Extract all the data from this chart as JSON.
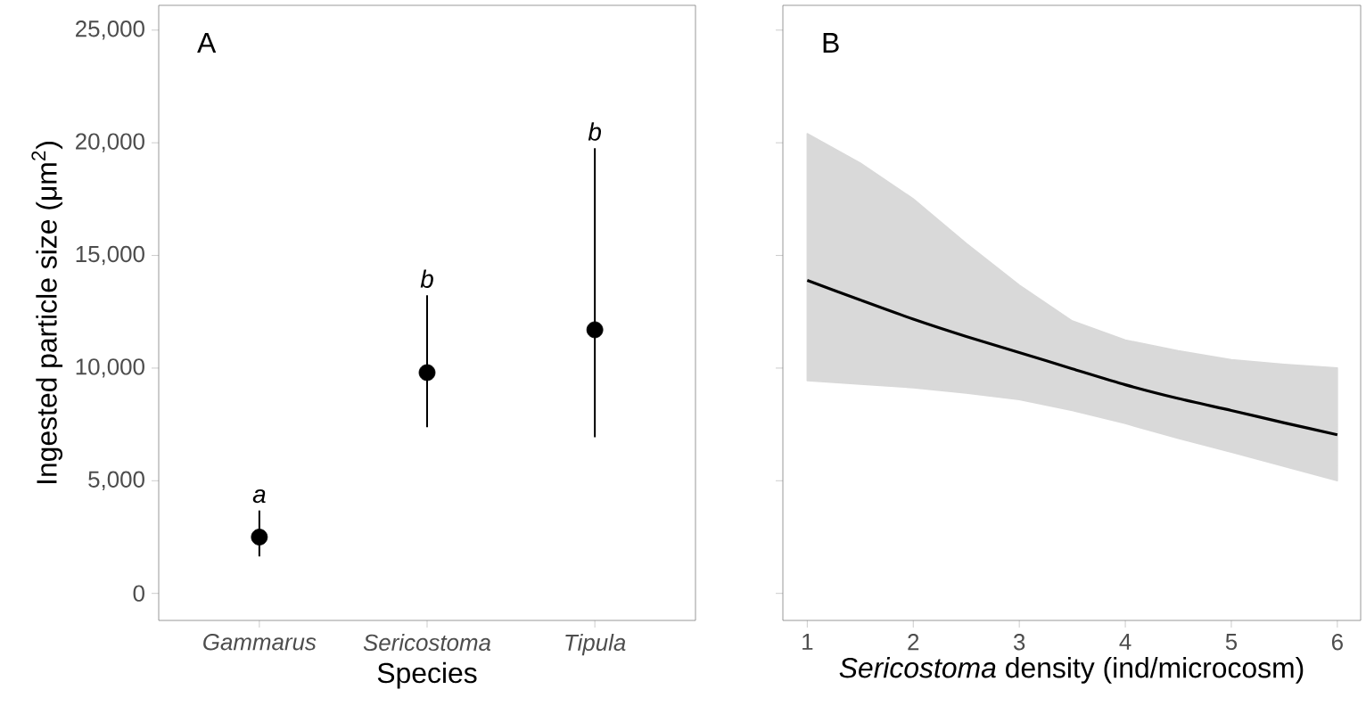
{
  "chart_data": [
    {
      "type": "scatter",
      "title": "A",
      "xlabel": "Species",
      "ylabel": "Ingested particle size (μm$^{2}$)",
      "categories": [
        "Gammarus",
        "Sericostoma",
        "Tipula"
      ],
      "values": [
        2500,
        9800,
        11700
      ],
      "errors": [
        [
          1640,
          3680
        ],
        [
          7380,
          13230
        ],
        [
          6930,
          19760
        ]
      ],
      "color": "#000000",
      "marker": "circle",
      "annotations": [
        "a",
        "b",
        "b"
      ],
      "ylim": [
        -1200,
        26100
      ],
      "yticks": [
        {
          "value": 0,
          "label": "0"
        },
        {
          "value": 5000,
          "label": "5,000"
        },
        {
          "value": 10000,
          "label": "10,000"
        },
        {
          "value": 15000,
          "label": "15,000"
        },
        {
          "value": 20000,
          "label": "20,000"
        },
        {
          "value": 25000,
          "label": "25,000"
        }
      ],
      "grid": false
    },
    {
      "type": "line",
      "title": "B",
      "xlabel": "*Sericostoma* density (ind/microcosm)",
      "series": [
        {
          "color": "#000000",
          "x": [
            1,
            1.5,
            2,
            2.5,
            3,
            3.5,
            4,
            4.5,
            5,
            5.5,
            6
          ],
          "values": [
            13890,
            13020,
            12170,
            11400,
            10690,
            9970,
            9260,
            8650,
            8120,
            7570,
            7040
          ],
          "lower": [
            9440,
            9290,
            9130,
            8890,
            8600,
            8120,
            7540,
            6880,
            6270,
            5640,
            5000
          ],
          "upper": [
            20400,
            19100,
            17510,
            15530,
            13680,
            12090,
            11240,
            10770,
            10370,
            10160,
            10000
          ]
        }
      ],
      "xlim": [
        0.77,
        6.22
      ],
      "xticks": [
        1,
        2,
        3,
        4,
        5,
        6
      ],
      "ylim": [
        -1200,
        26100
      ],
      "yticks": [
        0,
        5000,
        10000,
        15000,
        20000,
        25000
      ],
      "tick_labels": "x",
      "grid": false
    }
  ]
}
